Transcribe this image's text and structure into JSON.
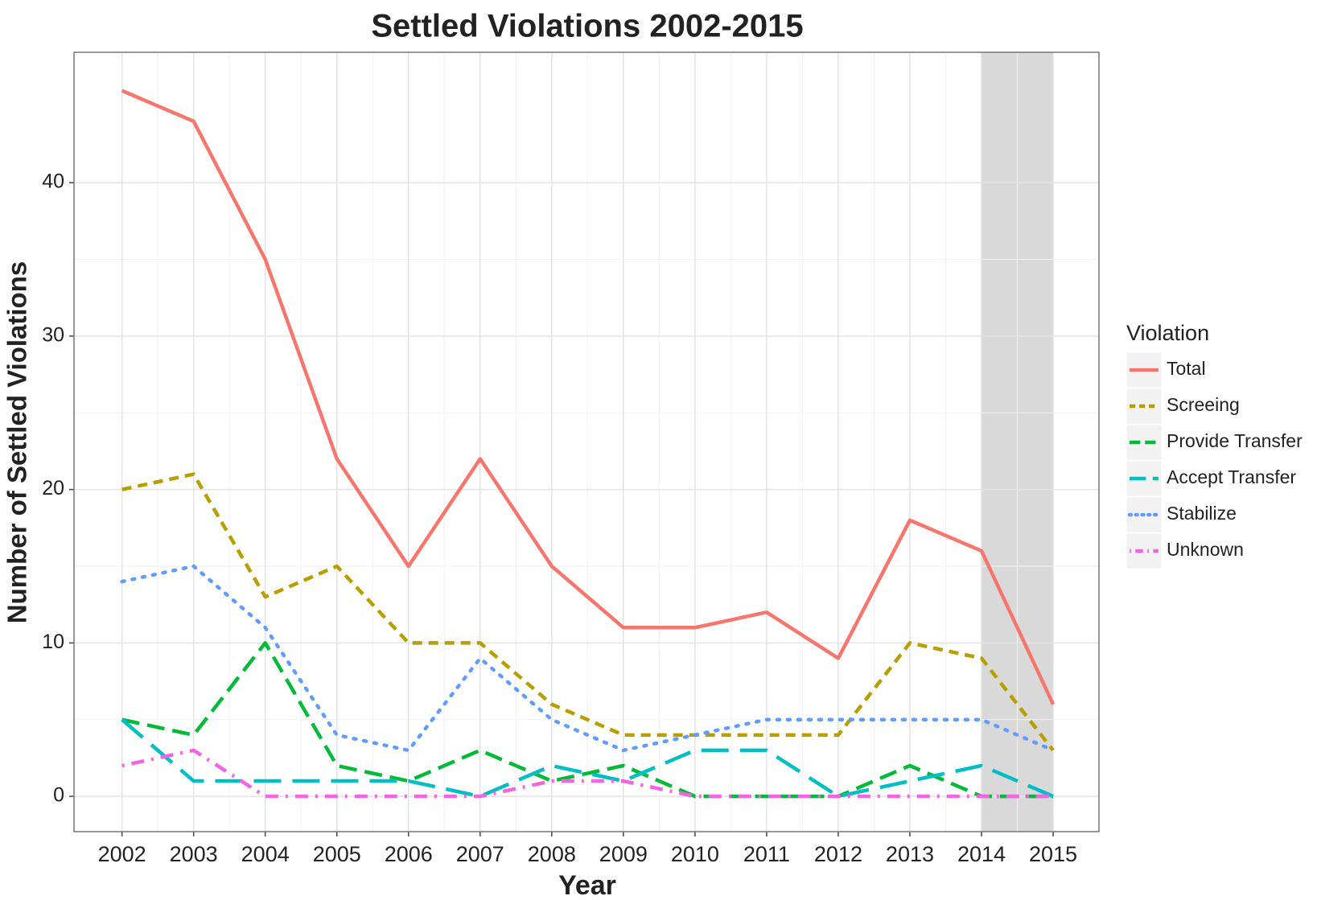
{
  "chart_data": {
    "type": "line",
    "title": "Settled Violations 2002-2015",
    "x_label": "Year",
    "y_label": "Number of Settled Violations",
    "legend_title": "Violation",
    "x": [
      2002,
      2003,
      2004,
      2005,
      2006,
      2007,
      2008,
      2009,
      2010,
      2011,
      2012,
      2013,
      2014,
      2015
    ],
    "series": [
      {
        "name": "Total",
        "color": "#F8766D",
        "dash": "solid",
        "values": [
          46,
          44,
          35,
          22,
          15,
          22,
          15,
          11,
          11,
          12,
          9,
          18,
          16,
          6
        ]
      },
      {
        "name": "Screeing",
        "color": "#B79F00",
        "dash": "dashed",
        "values": [
          20,
          21,
          13,
          15,
          10,
          10,
          6,
          4,
          4,
          4,
          4,
          10,
          9,
          3
        ]
      },
      {
        "name": "Provide Transfer",
        "color": "#00BA38",
        "dash": "longdash",
        "values": [
          5,
          4,
          10,
          2,
          1,
          3,
          1,
          2,
          0,
          0,
          0,
          2,
          0,
          0
        ]
      },
      {
        "name": "Accept Transfer",
        "color": "#00BFC4",
        "dash": "longerdash",
        "values": [
          5,
          1,
          1,
          1,
          1,
          0,
          2,
          1,
          3,
          3,
          0,
          1,
          2,
          0
        ]
      },
      {
        "name": "Stabilize",
        "color": "#619CFF",
        "dash": "dotted",
        "values": [
          14,
          15,
          11,
          4,
          3,
          9,
          5,
          3,
          4,
          5,
          5,
          5,
          5,
          3
        ]
      },
      {
        "name": "Unknown",
        "color": "#F564E3",
        "dash": "dotdash",
        "values": [
          2,
          3,
          0,
          0,
          0,
          0,
          1,
          1,
          0,
          0,
          0,
          0,
          0,
          0
        ]
      }
    ],
    "shaded_range": [
      2014,
      2015
    ],
    "shade_color": "#d9d9d9",
    "xlim": [
      2001.33,
      2015.64
    ],
    "xticks": [
      2002,
      2003,
      2004,
      2005,
      2006,
      2007,
      2008,
      2009,
      2010,
      2011,
      2012,
      2013,
      2014,
      2015
    ],
    "ylim": [
      -2.3,
      48.5
    ],
    "yticks": [
      0,
      10,
      20,
      30,
      40
    ],
    "grid": true,
    "legend": "right"
  }
}
